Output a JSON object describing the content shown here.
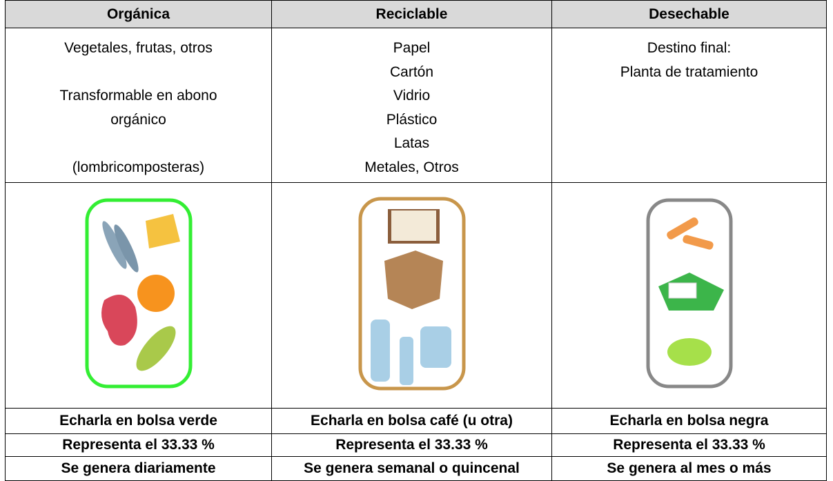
{
  "table": {
    "header": [
      "Orgánica",
      "Reciclable",
      "Desechable"
    ],
    "contents": [
      [
        "Vegetales, frutas, otros",
        "Transformable en abono",
        "orgánico",
        "(lombricomposteras)"
      ],
      [
        "Papel",
        "Cartón",
        "Vidrio",
        "Plástico",
        "Latas",
        "Metales, Otros"
      ],
      [
        "Destino final:",
        "Planta de tratamiento"
      ]
    ],
    "footer_rows": [
      [
        "Echarla en bolsa verde",
        "Echarla en bolsa café (u otra)",
        "Echarla en bolsa negra"
      ],
      [
        "Representa el 33.33 %",
        "Representa el 33.33 %",
        "Representa el 33.33 %"
      ],
      [
        "Se genera diariamente",
        "Se genera semanal o quincenal",
        "Se genera al mes o más"
      ]
    ]
  }
}
